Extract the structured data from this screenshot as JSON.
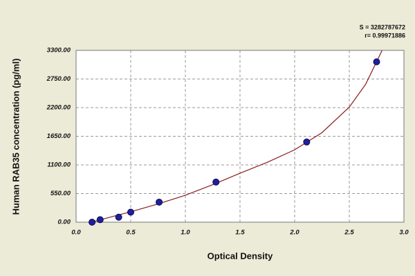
{
  "chart_data": {
    "type": "scatter",
    "x_label": "Optical Density",
    "y_label": "Human RAB35 concentration (pg/ml)",
    "annotations": [
      "S = 3282787672",
      "r= 0.99971886"
    ],
    "x": [
      0.146,
      0.22,
      0.39,
      0.5,
      0.76,
      1.28,
      2.11,
      2.75
    ],
    "values": [
      0,
      48,
      96,
      192,
      385,
      770,
      1540,
      3080
    ],
    "color": "#1f1f9e",
    "fit": {
      "color": "#8b1a1a",
      "x": [
        0.14,
        0.3,
        0.5,
        0.75,
        1.0,
        1.25,
        1.5,
        1.75,
        2.0,
        2.25,
        2.5,
        2.65,
        2.8
      ],
      "values": [
        0,
        90,
        200,
        350,
        517,
        720,
        940,
        1150,
        1390,
        1720,
        2210,
        2650,
        3300
      ]
    },
    "xlim": [
      0,
      3
    ],
    "ylim": [
      0,
      3300
    ],
    "xticks": [
      {
        "value": 0,
        "label": "0.0"
      },
      {
        "value": 0.5,
        "label": "0.5"
      },
      {
        "value": 1,
        "label": "1.0"
      },
      {
        "value": 1.5,
        "label": "1.5"
      },
      {
        "value": 2,
        "label": "2.0"
      },
      {
        "value": 2.5,
        "label": "2.5"
      },
      {
        "value": 3,
        "label": "3.0"
      }
    ],
    "yticks": [
      {
        "value": 0,
        "label": "0.00"
      },
      {
        "value": 550,
        "label": "550.00"
      },
      {
        "value": 1100,
        "label": "1100.00"
      },
      {
        "value": 1650,
        "label": "1650.00"
      },
      {
        "value": 2200,
        "label": "2200.00"
      },
      {
        "value": 2750,
        "label": "2750.00"
      },
      {
        "value": 3300,
        "label": "3300.00"
      }
    ],
    "grid": true
  }
}
